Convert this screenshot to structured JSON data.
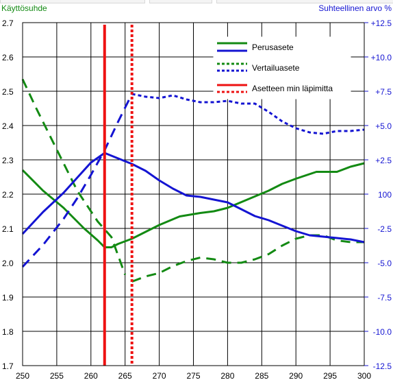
{
  "chart_data": {
    "type": "line",
    "left_axis_title": "Käyttösuhde",
    "right_axis_title": "Suhteellinen arvo %",
    "x_ticks": [
      250,
      255,
      260,
      265,
      270,
      275,
      280,
      285,
      290,
      295,
      300
    ],
    "x_tick_labels": [
      "250",
      "255",
      "260",
      "265",
      "270",
      "275",
      "280",
      "285",
      "290",
      "295",
      "300"
    ],
    "xlim": [
      250,
      300
    ],
    "y_ticks": [
      1.7,
      1.8,
      1.9,
      2.0,
      2.1,
      2.2,
      2.3,
      2.4,
      2.5,
      2.6,
      2.7
    ],
    "y_tick_labels": [
      "1.7",
      "1.8",
      "1.9",
      "2.0",
      "2.1",
      "2.2",
      "2.3",
      "2.4",
      "2.5",
      "2.6",
      "2.7"
    ],
    "ylim": [
      1.7,
      2.7
    ],
    "y2_ticks": [
      -12.5,
      -10,
      -7.5,
      -5,
      -2.5,
      0,
      2.5,
      5,
      7.5,
      10,
      12.5
    ],
    "y2_tick_labels": [
      "-12.5",
      "-10.0",
      "-7.5",
      "-5.0",
      "-2.5",
      "100",
      "+2.5",
      "+5.0",
      "+7.5",
      "+10.0",
      "+12.5"
    ],
    "y2lim": [
      -12.5,
      12.5
    ],
    "grid": true,
    "legend": {
      "placement": "top-right",
      "entries": [
        {
          "label": "Perusasete",
          "colors": [
            "#138a13",
            "#1414d2"
          ],
          "style": "solid"
        },
        {
          "label": "Vertailuasete",
          "colors": [
            "#138a13",
            "#1414d2"
          ],
          "style": "dotted"
        },
        {
          "label": "Asetteen min läpimitta",
          "colors": [
            "#ee1111",
            "#ee1111"
          ],
          "style": "solid-dotted"
        }
      ]
    },
    "series": [
      {
        "axis": "left",
        "color": "#138a13",
        "style": "solid",
        "x": [
          250,
          253,
          256,
          259,
          261,
          262,
          263,
          264,
          266,
          268,
          270,
          273,
          276,
          278,
          280,
          283,
          286,
          288,
          290,
          293,
          296,
          298,
          300
        ],
        "y": [
          2.27,
          2.21,
          2.16,
          2.1,
          2.065,
          2.045,
          2.045,
          2.055,
          2.07,
          2.09,
          2.11,
          2.135,
          2.145,
          2.15,
          2.16,
          2.185,
          2.21,
          2.23,
          2.245,
          2.265,
          2.265,
          2.28,
          2.29
        ]
      },
      {
        "axis": "left",
        "color": "#138a13",
        "style": "dashed",
        "x": [
          250,
          252,
          255,
          258,
          261,
          263,
          265
        ],
        "y": [
          2.535,
          2.45,
          2.33,
          2.21,
          2.12,
          2.075,
          1.965
        ]
      },
      {
        "axis": "left",
        "color": "#138a13",
        "style": "dashed",
        "x": [
          266,
          268,
          270,
          272,
          274,
          276,
          278,
          280,
          282,
          284,
          286,
          288,
          290,
          292,
          294,
          296,
          298,
          300
        ],
        "y": [
          1.945,
          1.96,
          1.97,
          1.99,
          2.005,
          2.015,
          2.01,
          2.0,
          2.0,
          2.01,
          2.025,
          2.05,
          2.07,
          2.08,
          2.08,
          2.065,
          2.06,
          2.06
        ]
      },
      {
        "axis": "right",
        "color": "#1414d2",
        "style": "solid",
        "x": [
          250,
          253,
          256,
          258,
          260,
          262,
          264,
          266,
          268,
          270,
          272,
          274,
          276,
          278,
          280,
          282,
          284,
          286,
          288,
          290,
          292,
          294,
          296,
          298,
          300
        ],
        "y": [
          -2.9,
          -1.3,
          0.1,
          1.2,
          2.3,
          3.0,
          2.6,
          2.2,
          1.7,
          1.0,
          0.4,
          -0.1,
          -0.2,
          -0.4,
          -0.6,
          -1.1,
          -1.6,
          -1.9,
          -2.3,
          -2.7,
          -3.0,
          -3.1,
          -3.2,
          -3.3,
          -3.5
        ]
      },
      {
        "axis": "right",
        "color": "#1414d2",
        "style": "dashed",
        "x": [
          250,
          253,
          256,
          258,
          260,
          262,
          264,
          266
        ],
        "y": [
          -5.3,
          -3.7,
          -1.8,
          -0.3,
          1.4,
          3.2,
          5.3,
          7.3
        ]
      },
      {
        "axis": "right",
        "color": "#1414d2",
        "style": "dotted",
        "x": [
          266,
          268,
          270,
          272,
          274,
          276,
          278,
          280,
          282,
          284,
          286,
          288,
          290,
          292,
          294,
          296,
          298,
          300
        ],
        "y": [
          7.3,
          7.1,
          7.0,
          7.2,
          6.9,
          6.7,
          6.7,
          6.8,
          6.6,
          6.6,
          6.0,
          5.3,
          4.8,
          4.5,
          4.4,
          4.6,
          4.6,
          4.7
        ]
      }
    ],
    "vertical_markers": [
      {
        "x": 262,
        "color": "#ee1111",
        "style": "solid"
      },
      {
        "x": 266,
        "color": "#ee1111",
        "style": "dotted"
      }
    ]
  }
}
